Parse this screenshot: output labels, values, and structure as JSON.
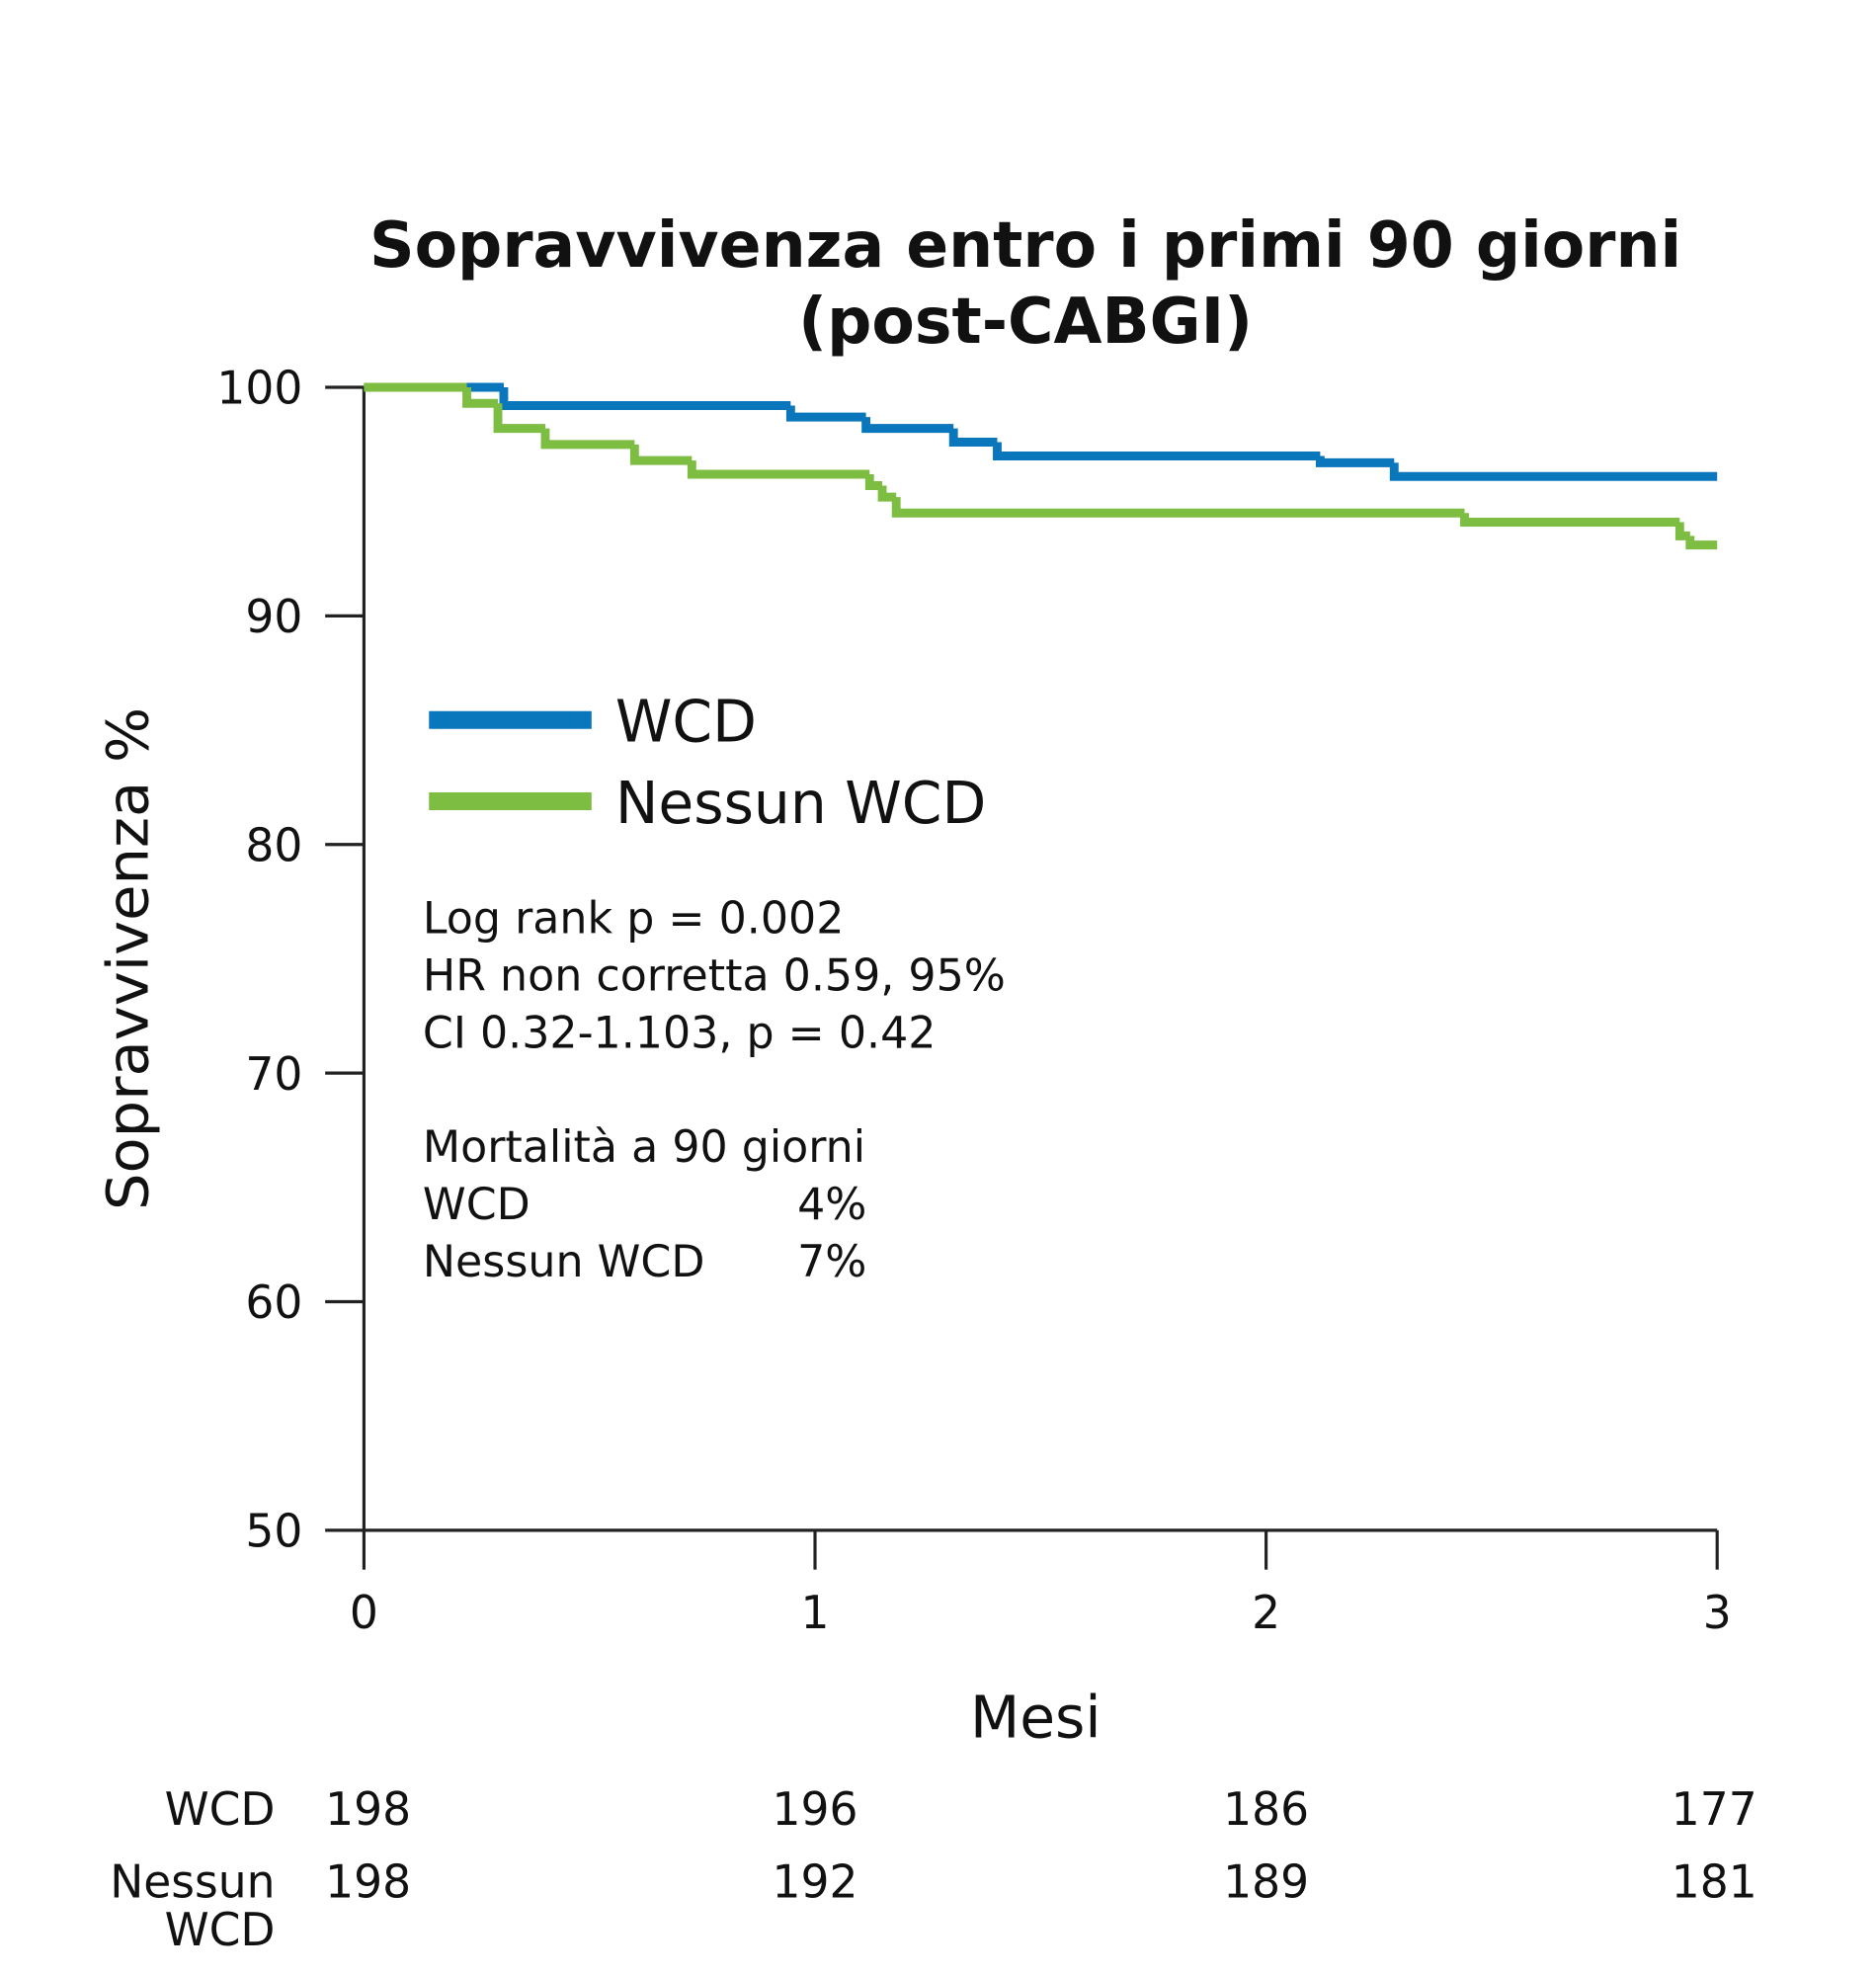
{
  "chart_data": {
    "type": "step",
    "title": [
      "Sopravvivenza entro i primi 90 giorni",
      "(post-CABGI)"
    ],
    "x_label": "Mesi",
    "y_label": "Sopravvivenza %",
    "xlim": [
      0,
      3
    ],
    "xticks": [
      0,
      1,
      2,
      3
    ],
    "ylim": [
      50,
      100
    ],
    "yticks": [
      50,
      60,
      70,
      80,
      90,
      100
    ],
    "series": [
      {
        "name": "WCD",
        "color": "#0a76bc",
        "x": [
          0,
          0.31,
          0.946,
          1.113,
          1.307,
          1.404,
          2.12,
          2.284,
          3
        ],
        "values": [
          100,
          99.2,
          98.7,
          98.2,
          97.6,
          97.0,
          96.7,
          96.1,
          96.1
        ]
      },
      {
        "name": "Nessun WCD",
        "color": "#7dbd42",
        "x": [
          0,
          0.228,
          0.297,
          0.402,
          0.6,
          0.727,
          1.121,
          1.149,
          1.18,
          2.44,
          2.917,
          2.94,
          3
        ],
        "values": [
          100,
          99.3,
          98.2,
          97.5,
          96.8,
          96.2,
          95.7,
          95.2,
          94.5,
          94.1,
          93.5,
          93.1,
          93.1
        ]
      }
    ],
    "annotations": [
      "Log rank p = 0.002",
      "HR non corretta 0.59, 95%",
      "CI 0.32-1.103, p = 0.42"
    ],
    "mortality": {
      "header": "Mortalità a 90 giorni",
      "rows": [
        [
          "WCD",
          "4%"
        ],
        [
          "Nessun WCD",
          "7%"
        ]
      ]
    },
    "at_risk": [
      {
        "label": [
          "WCD"
        ],
        "counts": [
          198,
          196,
          186,
          177
        ]
      },
      {
        "label": [
          "Nessun",
          "WCD"
        ],
        "counts": [
          198,
          192,
          189,
          181
        ]
      }
    ]
  }
}
